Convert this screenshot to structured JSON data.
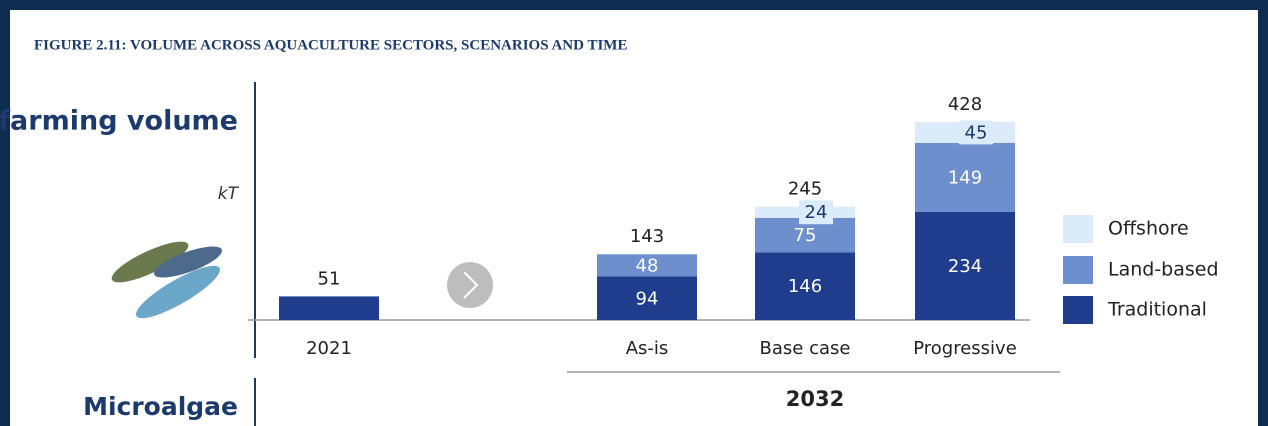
{
  "chart_data": {
    "type": "stacked_bar",
    "title": "FIGURE 2.11: VOLUME ACROSS AQUACULTURE SECTORS, SCENARIOS AND TIME",
    "ylabel": "Fish farming volume",
    "unit": "kT",
    "categories": [
      "2021",
      "As-is",
      "Base case",
      "Progressive"
    ],
    "group_label": "2032",
    "bottom_label": "Microalgae",
    "series": [
      {
        "name": "Traditional",
        "color": "#1f3d8c",
        "values": [
          51,
          94,
          146,
          234
        ]
      },
      {
        "name": "Land-based",
        "color": "#6e8fcd",
        "values": [
          null,
          48,
          75,
          149
        ]
      },
      {
        "name": "Offshore",
        "color": "#dcebf9",
        "values": [
          null,
          null,
          24,
          45
        ]
      }
    ],
    "totals": [
      51,
      143,
      245,
      428
    ]
  }
}
